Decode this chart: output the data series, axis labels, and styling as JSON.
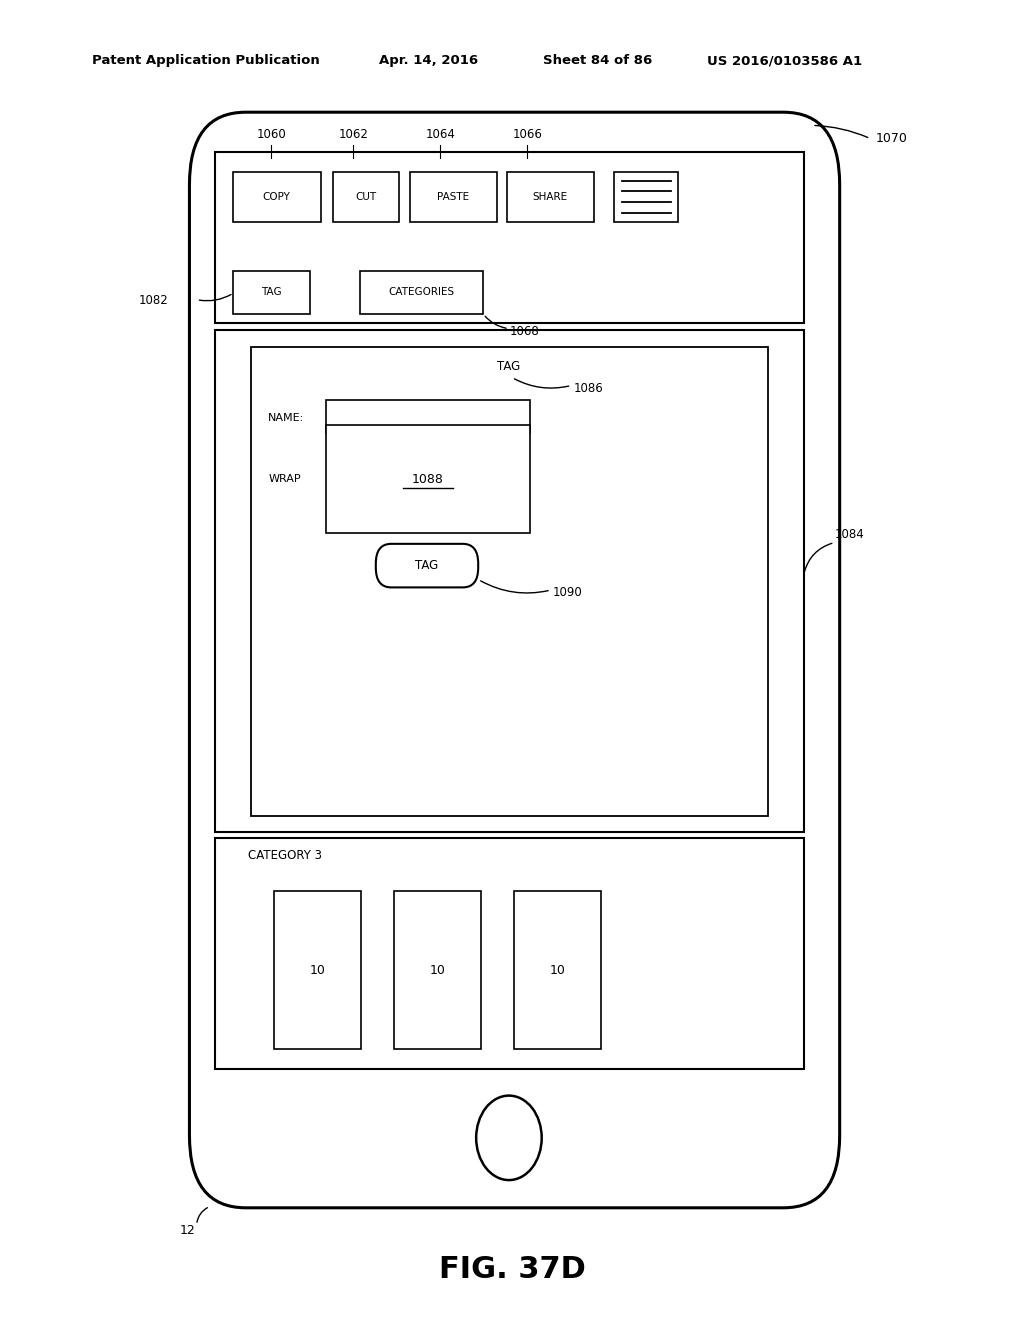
{
  "bg_color": "#ffffff",
  "title_line": "FIG. 37D",
  "header_text": "Patent Application Publication",
  "header_date": "Apr. 14, 2016",
  "header_sheet": "Sheet 84 of 86",
  "header_patent": "US 2016/0103586 A1",
  "label_12": "12",
  "label_1070": "1070",
  "label_1082": "1082",
  "label_1068": "1068",
  "label_1084": "1084",
  "label_1086": "1086",
  "label_1088": "1088",
  "label_1090": "1090",
  "label_1060": "1060",
  "label_1062": "1062",
  "label_1064": "1064",
  "label_1066": "1066"
}
